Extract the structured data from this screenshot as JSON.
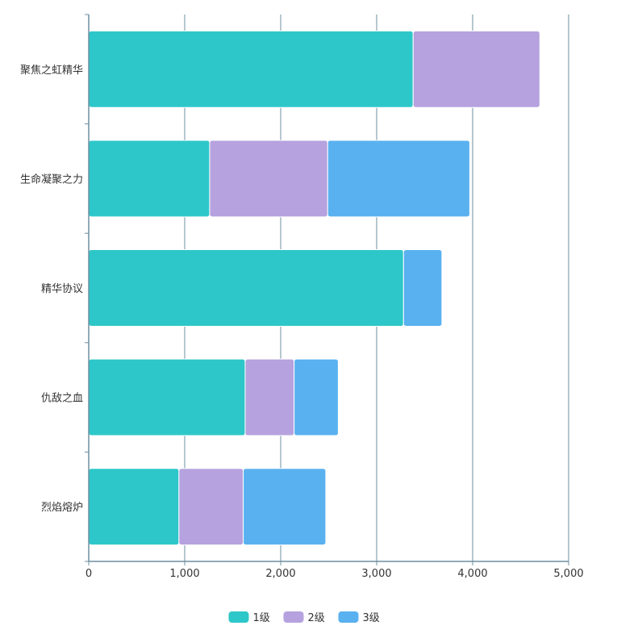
{
  "chart_data": {
    "type": "bar",
    "orientation": "horizontal",
    "stacked": true,
    "categories": [
      "聚焦之虹精华",
      "生命凝聚之力",
      "精华协议",
      "仇敌之血",
      "烈焰熔炉"
    ],
    "series": [
      {
        "name": "1级",
        "color": "#2ec7c9",
        "values": [
          3380,
          1260,
          3280,
          1630,
          940
        ]
      },
      {
        "name": "2级",
        "color": "#b6a2de",
        "values": [
          1320,
          1230,
          0,
          510,
          670
        ]
      },
      {
        "name": "3级",
        "color": "#5ab1ef",
        "values": [
          0,
          1480,
          400,
          460,
          860
        ]
      }
    ],
    "xlim": [
      0,
      5000
    ],
    "xticks": [
      "0",
      "1,000",
      "2,000",
      "3,000",
      "4,000",
      "5,000"
    ],
    "grid": true,
    "legend_position": "bottom"
  }
}
